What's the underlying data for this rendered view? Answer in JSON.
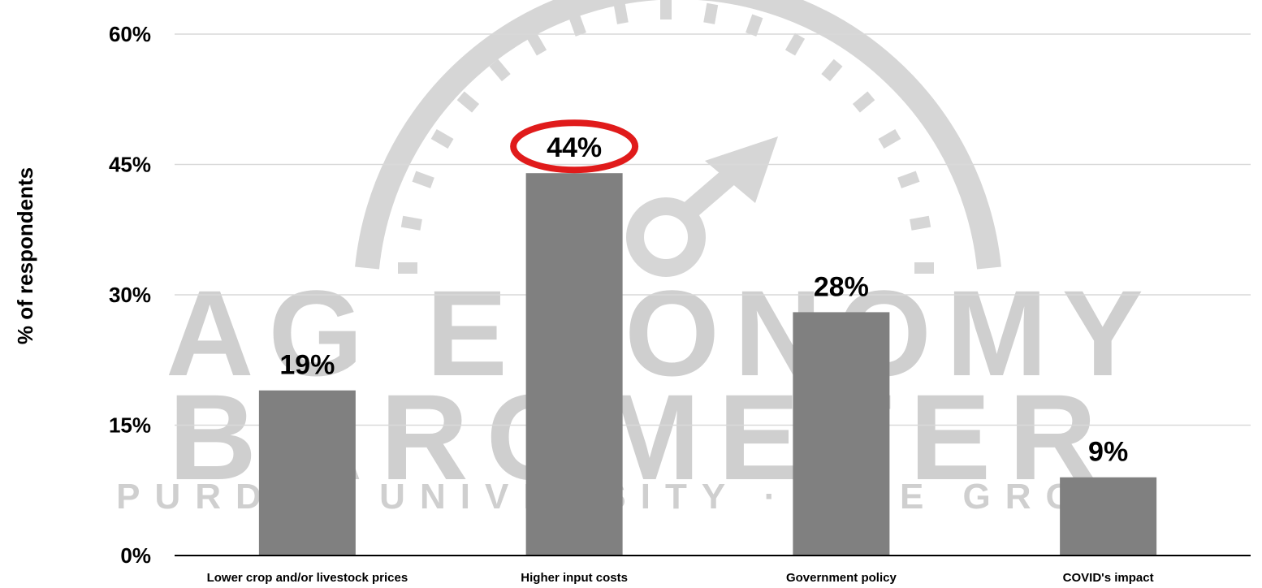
{
  "watermark": {
    "line1": "AG ECONOMY",
    "line2": "BAROMETER",
    "line3": "PURDUE UNIVERSITY · CME GROUP"
  },
  "colors": {
    "bar": "#808080",
    "gridline": "#d9d9d9",
    "axis": "#000000",
    "highlight_ring": "#e01b1b",
    "watermark": "#d0d0d0"
  },
  "chart_data": {
    "type": "bar",
    "title": "",
    "xlabel": "",
    "ylabel": "% of respondents",
    "categories": [
      "Lower crop and/or livestock prices",
      "Higher input costs",
      "Government policy",
      "COVID's impact"
    ],
    "values": [
      19,
      44,
      28,
      9
    ],
    "value_labels": [
      "19%",
      "44%",
      "28%",
      "9%"
    ],
    "ylim": [
      0,
      60
    ],
    "yticks": [
      0,
      15,
      30,
      45,
      60
    ],
    "ytick_labels": [
      "0%",
      "15%",
      "30%",
      "45%",
      "60%"
    ],
    "grid": true,
    "legend": "none",
    "highlighted_category": "Higher input costs"
  }
}
